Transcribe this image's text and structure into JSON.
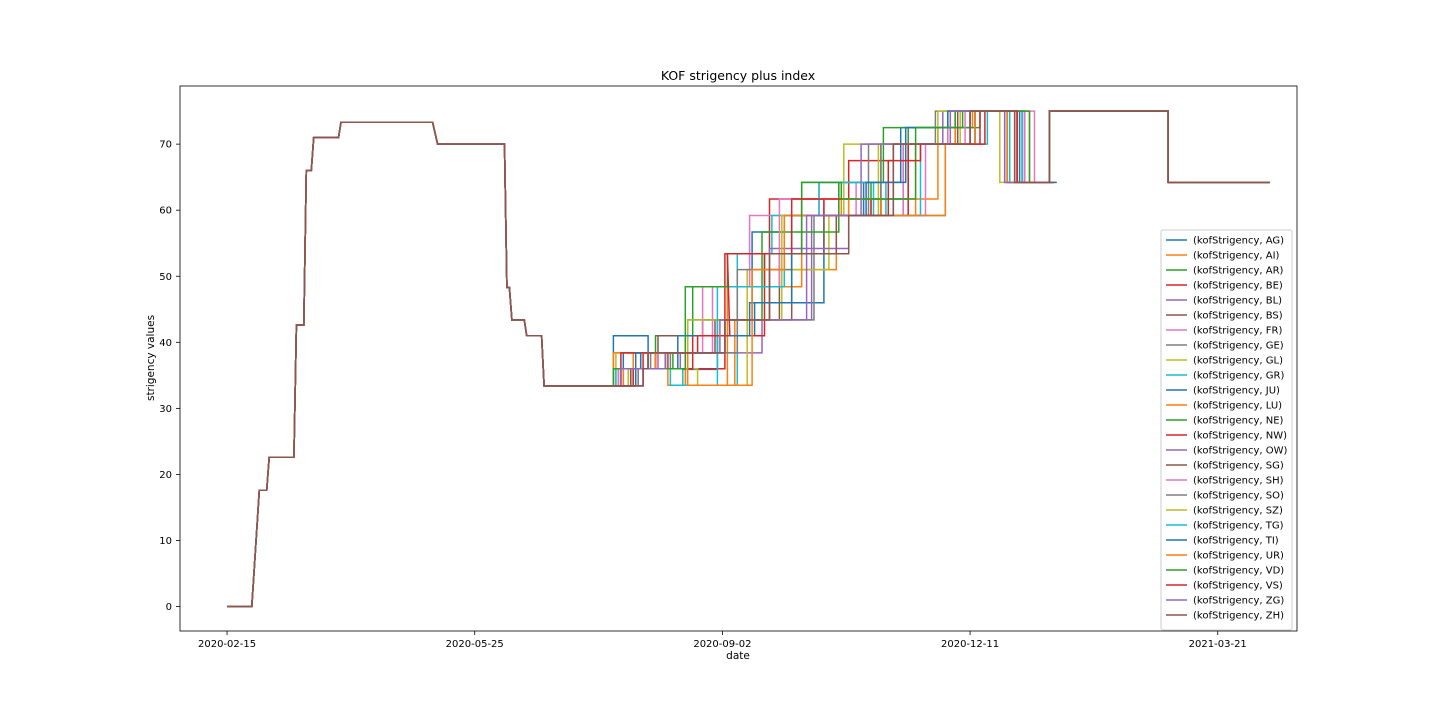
{
  "chart_data": {
    "type": "line",
    "title": "KOF strigency plus index",
    "xlabel": "date",
    "ylabel": "strigency values",
    "x_ticks": [
      "2020-02-15",
      "2020-05-25",
      "2020-09-02",
      "2020-12-11",
      "2021-03-21"
    ],
    "y_ticks": [
      0,
      10,
      20,
      30,
      40,
      50,
      60,
      70
    ],
    "xlim": [
      "2020-01-27",
      "2021-04-22"
    ],
    "ylim": [
      -3.7,
      78.8
    ],
    "grid": false,
    "legend_position": "lower-right",
    "base_series": {
      "dates": [
        "2020-02-15",
        "2020-02-25",
        "2020-02-28",
        "2020-03-02",
        "2020-03-03",
        "2020-03-13",
        "2020-03-14",
        "2020-03-17",
        "2020-03-18",
        "2020-03-20",
        "2020-03-21",
        "2020-03-31",
        "2020-04-01",
        "2020-04-27",
        "2020-04-28",
        "2020-05-08",
        "2020-05-10",
        "2020-05-11",
        "2020-05-12",
        "2020-05-15",
        "2020-05-16",
        "2020-06-06",
        "2020-06-07",
        "2020-06-08",
        "2020-06-09",
        "2020-06-14",
        "2020-06-15",
        "2020-06-21",
        "2020-06-22",
        "2020-07-04",
        "2020-07-05",
        "2020-07-17"
      ],
      "values": [
        0,
        0,
        17.6,
        17.6,
        22.6,
        22.6,
        42.6,
        42.6,
        66,
        66,
        71,
        71,
        73.3,
        73.3,
        73.3,
        73.3,
        70,
        70,
        70,
        70,
        70,
        70,
        48.3,
        48.3,
        43.4,
        43.4,
        41,
        41,
        33.4,
        33.4,
        33.4,
        33.4
      ]
    },
    "series": [
      {
        "name": "(kofStrigency, AG)",
        "color": "#1f77b4",
        "values": [
          [
            41.0,
            36.0,
            35.9,
            41,
            41,
            46,
            46,
            59.2,
            59.2,
            64.2,
            64.2,
            72.5,
            72.5,
            75,
            75,
            64.2,
            64.2
          ]
        ]
      },
      {
        "name": "(kofStrigency, AI)",
        "color": "#ff7f0e",
        "values": [
          [
            38.4,
            36.0,
            33.5,
            33.5,
            43.4,
            43.4,
            51,
            51,
            59.2,
            59.2,
            61.7,
            61.7,
            72.5,
            72.5,
            75,
            75,
            64.2,
            64.2
          ]
        ]
      },
      {
        "name": "(kofStrigency, AR)",
        "color": "#2ca02c",
        "values": [
          [
            36.0,
            41.0,
            41,
            48.4,
            48.4,
            53.4,
            53.4,
            64.2,
            64.2,
            61.7,
            61.7,
            72.5,
            72.5,
            75,
            75,
            64.2,
            64.2
          ]
        ]
      },
      {
        "name": "(kofStrigency, BE)",
        "color": "#d62728",
        "values": [
          [
            38.4,
            36.0,
            36.0,
            53.4,
            53.4,
            61.7,
            61.7,
            67.5,
            67.5,
            70,
            70,
            75,
            75,
            64.2,
            64.2
          ]
        ]
      },
      {
        "name": "(kofStrigency, BL)",
        "color": "#9467bd",
        "values": [
          [
            36.0,
            36.0,
            38.4,
            38.4,
            43.4,
            43.4,
            59.2,
            59.2,
            70,
            70,
            75,
            75,
            64.2,
            64.2
          ]
        ]
      },
      {
        "name": "(kofStrigency, BS)",
        "color": "#8c564b",
        "values": [
          [
            36.0,
            41.0,
            41,
            43.4,
            43.4,
            53.4,
            53.4,
            59.2,
            59.2,
            70,
            70,
            75,
            75,
            64.2,
            64.2
          ]
        ]
      },
      {
        "name": "(kofStrigency, FR)",
        "color": "#e377c2",
        "values": [
          [
            36.0,
            38.4,
            38.4,
            48.4,
            48.4,
            59.2,
            59.2,
            64.2,
            64.2,
            59.2,
            59.2,
            70,
            70,
            75,
            75,
            64.2,
            64.2
          ]
        ]
      },
      {
        "name": "(kofStrigency, GE)",
        "color": "#7f7f7f",
        "values": [
          [
            36.0,
            38.4,
            38.4,
            43.4,
            43.4,
            59.2,
            59.2,
            70,
            70,
            75,
            75,
            64.2,
            64.2
          ]
        ]
      },
      {
        "name": "(kofStrigency, GL)",
        "color": "#bcbd22",
        "values": [
          [
            38.4,
            36.0,
            33.5,
            33.5,
            51,
            51,
            59.2,
            59.2,
            70,
            70,
            75,
            75,
            64.2,
            64.2
          ]
        ]
      },
      {
        "name": "(kofStrigency, GR)",
        "color": "#17becf",
        "values": [
          [
            36.0,
            36.0,
            33.5,
            33.5,
            53.4,
            53.4,
            59.2,
            59.2,
            64.2,
            64.2,
            59.2,
            59.2,
            70,
            70,
            75,
            75,
            64.2,
            64.2
          ]
        ]
      },
      {
        "name": "(kofStrigency, JU)",
        "color": "#1f77b4",
        "values": [
          [
            38.4,
            36.0,
            36.0,
            43.4,
            43.4,
            56.7,
            56.7,
            59.2,
            59.2,
            61.7,
            61.7,
            59.2,
            59.2,
            70,
            70,
            75,
            75,
            64.2,
            64.2
          ]
        ]
      },
      {
        "name": "(kofStrigency, LU)",
        "color": "#ff7f0e",
        "values": [
          [
            38.4,
            36.0,
            33.5,
            33.5,
            48.4,
            48.4,
            61.7,
            61.7,
            59.2,
            59.2,
            70,
            70,
            75,
            75,
            64.2,
            64.2
          ]
        ]
      },
      {
        "name": "(kofStrigency, NE)",
        "color": "#2ca02c",
        "values": [
          [
            36.0,
            38.4,
            38.4,
            43.4,
            43.4,
            56.7,
            56.7,
            64.2,
            64.2,
            72.5,
            72.5,
            75,
            75,
            64.2,
            64.2
          ]
        ]
      },
      {
        "name": "(kofStrigency, NW)",
        "color": "#d62728",
        "values": [
          [
            38.4,
            36.0,
            36.0,
            41,
            41,
            53.4,
            53.4,
            61.7,
            61.7,
            59.2,
            59.2,
            70,
            70,
            75,
            75,
            64.2,
            64.2
          ]
        ]
      },
      {
        "name": "(kofStrigency, OW)",
        "color": "#9467bd",
        "values": [
          [
            36.0,
            38.4,
            38.4,
            43.4,
            43.4,
            54.2,
            54.2,
            59.2,
            59.2,
            70,
            70,
            75,
            75,
            64.2,
            64.2
          ]
        ]
      },
      {
        "name": "(kofStrigency, SG)",
        "color": "#8c564b",
        "values": [
          [
            36.0,
            38.4,
            38.4,
            43.4,
            43.4,
            53.4,
            53.4,
            59.2,
            59.2,
            70,
            70,
            75,
            75,
            64.2,
            64.2
          ]
        ]
      },
      {
        "name": "(kofStrigency, SH)",
        "color": "#e377c2",
        "values": [
          [
            36.0,
            38.4,
            38.4,
            48.4,
            48.4,
            61.7,
            61.7,
            59.2,
            59.2,
            70,
            70,
            75,
            75,
            64.2,
            64.2
          ]
        ]
      },
      {
        "name": "(kofStrigency, SO)",
        "color": "#7f7f7f",
        "values": [
          [
            36.0,
            38.4,
            38.4,
            51,
            51,
            59.2,
            59.2,
            70,
            70,
            75,
            75,
            64.2,
            64.2
          ]
        ]
      },
      {
        "name": "(kofStrigency, SZ)",
        "color": "#bcbd22",
        "values": [
          [
            36.0,
            36.0,
            43.4,
            43.4,
            59.2,
            59.2,
            70,
            70,
            75,
            75,
            64.2,
            64.2
          ]
        ]
      },
      {
        "name": "(kofStrigency, TG)",
        "color": "#17becf",
        "values": [
          [
            36.0,
            36.0,
            33.5,
            33.5,
            48.4,
            48.4,
            59.2,
            59.2,
            64.2,
            64.2,
            59.2,
            59.2,
            70,
            70,
            75,
            75,
            64.2,
            64.2
          ]
        ]
      },
      {
        "name": "(kofStrigency, TI)",
        "color": "#1f77b4",
        "values": [
          [
            38.4,
            36.0,
            41.0,
            41,
            46,
            46,
            59.2,
            59.2,
            64.2,
            64.2,
            72.5,
            72.5,
            75,
            75,
            64.2,
            64.2
          ]
        ]
      },
      {
        "name": "(kofStrigency, UR)",
        "color": "#ff7f0e",
        "values": [
          [
            36.0,
            38.4,
            38.4,
            33.5,
            33.5,
            51,
            51,
            59.2,
            59.2,
            61.7,
            61.7,
            59.2,
            59.2,
            70,
            70,
            75,
            75,
            64.2,
            64.2
          ]
        ]
      },
      {
        "name": "(kofStrigency, VD)",
        "color": "#2ca02c",
        "values": [
          [
            36.0,
            36.0,
            48.4,
            48.4,
            53.4,
            53.4,
            64.2,
            64.2,
            61.7,
            61.7,
            72.5,
            72.5,
            75,
            75,
            64.2,
            64.2
          ]
        ]
      },
      {
        "name": "(kofStrigency, VS)",
        "color": "#d62728",
        "values": [
          [
            36.0,
            38.4,
            38.4,
            41,
            41,
            53.4,
            53.4,
            61.7,
            61.7,
            59.2,
            59.2,
            67.5,
            67.5,
            70,
            70,
            75,
            75,
            64.2,
            64.2
          ]
        ]
      },
      {
        "name": "(kofStrigency, ZG)",
        "color": "#9467bd",
        "values": [
          [
            36.0,
            38.4,
            38.4,
            43.4,
            43.4,
            59.2,
            59.2,
            70,
            70,
            75,
            75,
            64.2,
            64.2
          ]
        ]
      },
      {
        "name": "(kofStrigency, ZH)",
        "color": "#8c564b",
        "values": [
          [
            36.0,
            38.4,
            38.4,
            43.4,
            43.4,
            53.4,
            53.4,
            59.2,
            59.2,
            70,
            70,
            75,
            75,
            64.2,
            64.2
          ]
        ]
      }
    ],
    "series_dates": [
      [
        "2020-07-17",
        "2020-07-18",
        "2020-07-19",
        "2020-07-20",
        "2020-07-21",
        "2020-07-22",
        "2020-07-23",
        "2020-07-24",
        "2020-07-25",
        "2020-07-26",
        "2020-07-27",
        "2020-07-28",
        "2020-07-29",
        "2020-07-30",
        "2020-07-31",
        "2020-08-01",
        "2020-08-02"
      ]
    ]
  }
}
